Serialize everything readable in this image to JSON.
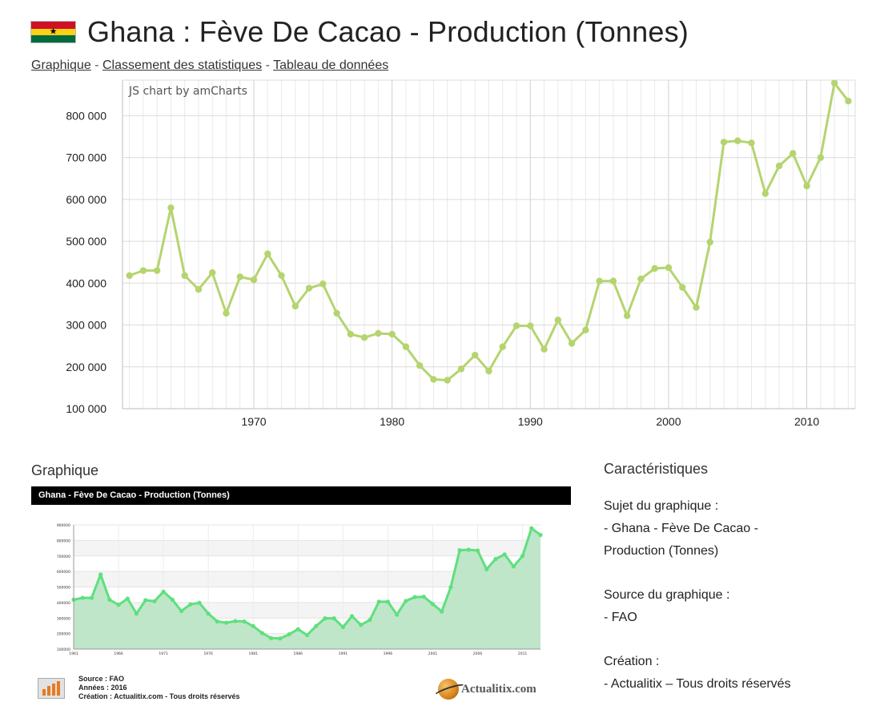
{
  "header": {
    "title": "Ghana : Fève De Cacao - Production (Tonnes)",
    "flag_icon": "ghana-flag-icon"
  },
  "nav": {
    "link1": "Graphique",
    "sep": "-",
    "link2": "Classement des statistiques",
    "link3": "Tableau de données"
  },
  "chart_data": [
    {
      "type": "line",
      "title": "",
      "xlabel": "",
      "ylabel": "",
      "credit": "JS chart by amCharts",
      "x_tick_labels": [
        "1970",
        "1980",
        "1990",
        "2000",
        "2010"
      ],
      "y_tick_labels": [
        "100 000",
        "200 000",
        "300 000",
        "400 000",
        "500 000",
        "600 000",
        "700 000",
        "800 000"
      ],
      "xlim": [
        1960.5,
        2013.5
      ],
      "ylim": [
        100000,
        885000
      ],
      "grid": true,
      "line_color": "#b5d46f",
      "series": [
        {
          "x": [
            1961,
            1962,
            1963,
            1964,
            1965,
            1966,
            1967,
            1968,
            1969,
            1970,
            1971,
            1972,
            1973,
            1974,
            1975,
            1976,
            1977,
            1978,
            1979,
            1980,
            1981,
            1982,
            1983,
            1984,
            1985,
            1986,
            1987,
            1988,
            1989,
            1990,
            1991,
            1992,
            1993,
            1994,
            1995,
            1996,
            1997,
            1998,
            1999,
            2000,
            2001,
            2002,
            2003,
            2004,
            2005,
            2006,
            2007,
            2008,
            2009,
            2010,
            2011,
            2012,
            2013
          ],
          "values": [
            418000,
            430000,
            430000,
            580000,
            418000,
            385000,
            425000,
            328000,
            415000,
            408000,
            470000,
            418000,
            345000,
            388000,
            398000,
            328000,
            278000,
            270000,
            280000,
            278000,
            248000,
            203000,
            170000,
            168000,
            195000,
            228000,
            190000,
            248000,
            298000,
            298000,
            242000,
            312000,
            256000,
            288000,
            405000,
            405000,
            322000,
            410000,
            435000,
            437000,
            390000,
            342000,
            498000,
            737000,
            740000,
            735000,
            614000,
            680000,
            710000,
            632000,
            700000,
            878000,
            835000
          ]
        }
      ]
    },
    {
      "type": "area",
      "title": "Ghana - Fève De Cacao - Production (Tonnes)",
      "xlabel": "",
      "ylabel": "",
      "x_tick_labels": [
        "1961",
        "1966",
        "1971",
        "1976",
        "1981",
        "1986",
        "1991",
        "1996",
        "2001",
        "2006",
        "2011"
      ],
      "y_tick_labels": [
        "100000",
        "200000",
        "300000",
        "400000",
        "500000",
        "600000",
        "700000",
        "800000",
        "900000"
      ],
      "xlim": [
        1961,
        2013
      ],
      "ylim": [
        100000,
        900000
      ],
      "grid": true,
      "line_color": "#5ee07e",
      "fill_color": "#bfe6c9",
      "series": [
        {
          "x": [
            1961,
            1962,
            1963,
            1964,
            1965,
            1966,
            1967,
            1968,
            1969,
            1970,
            1971,
            1972,
            1973,
            1974,
            1975,
            1976,
            1977,
            1978,
            1979,
            1980,
            1981,
            1982,
            1983,
            1984,
            1985,
            1986,
            1987,
            1988,
            1989,
            1990,
            1991,
            1992,
            1993,
            1994,
            1995,
            1996,
            1997,
            1998,
            1999,
            2000,
            2001,
            2002,
            2003,
            2004,
            2005,
            2006,
            2007,
            2008,
            2009,
            2010,
            2011,
            2012,
            2013
          ],
          "values": [
            418000,
            430000,
            430000,
            580000,
            418000,
            385000,
            425000,
            328000,
            415000,
            408000,
            470000,
            418000,
            345000,
            388000,
            398000,
            328000,
            278000,
            270000,
            280000,
            278000,
            248000,
            203000,
            170000,
            168000,
            195000,
            228000,
            190000,
            248000,
            298000,
            298000,
            242000,
            312000,
            256000,
            288000,
            405000,
            405000,
            322000,
            410000,
            435000,
            437000,
            390000,
            342000,
            498000,
            737000,
            740000,
            735000,
            614000,
            680000,
            710000,
            632000,
            700000,
            878000,
            835000
          ]
        }
      ]
    }
  ],
  "thumb_section": {
    "heading": "Graphique",
    "footer": {
      "source": "Source : FAO",
      "years": "Années : 2016",
      "creation": "Création : Actualitix.com - Tous droits réservés"
    },
    "brand": "Actualitix.com"
  },
  "carac": {
    "heading": "Caractéristiques",
    "subject_label": "Sujet du graphique :",
    "subject_line1": "- Ghana - Fève De Cacao -",
    "subject_line2": "Production (Tonnes)",
    "source_label": "Source du graphique :",
    "source_value": "- FAO",
    "creation_label": "Création :",
    "creation_value": "- Actualitix – Tous droits réservés"
  }
}
